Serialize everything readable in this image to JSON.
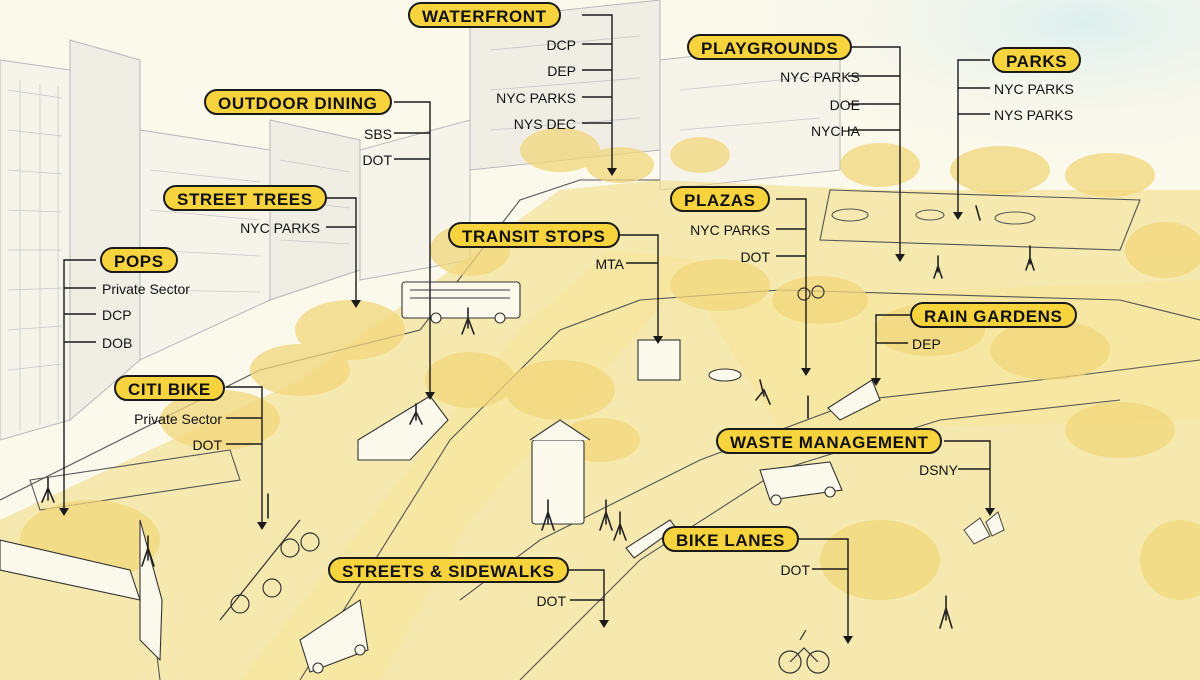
{
  "colors": {
    "accent": "#f7d43e",
    "wash": "#f3dd7e",
    "ink": "#1a1a1a",
    "sky": "#e6f2f1"
  },
  "labels": {
    "waterfront": {
      "title": "WATERFRONT",
      "agencies": [
        "DCP",
        "DEP",
        "NYC PARKS",
        "NYS DEC"
      ]
    },
    "playgrounds": {
      "title": "PLAYGROUNDS",
      "agencies": [
        "NYC PARKS",
        "DOE",
        "NYCHA"
      ]
    },
    "parks": {
      "title": "PARKS",
      "agencies": [
        "NYC PARKS",
        "NYS PARKS"
      ]
    },
    "outdoor_dining": {
      "title": "OUTDOOR DINING",
      "agencies": [
        "SBS",
        "DOT"
      ]
    },
    "street_trees": {
      "title": "STREET TREES",
      "agencies": [
        "NYC PARKS"
      ]
    },
    "transit_stops": {
      "title": "TRANSIT STOPS",
      "agencies": [
        "MTA"
      ]
    },
    "plazas": {
      "title": "PLAZAS",
      "agencies": [
        "NYC PARKS",
        "DOT"
      ]
    },
    "pops": {
      "title": "POPS",
      "agencies": [
        "Private Sector",
        "DCP",
        "DOB"
      ]
    },
    "rain_gardens": {
      "title": "RAIN GARDENS",
      "agencies": [
        "DEP"
      ]
    },
    "citi_bike": {
      "title": "CITI BIKE",
      "agencies": [
        "Private Sector",
        "DOT"
      ]
    },
    "waste_management": {
      "title": "WASTE MANAGEMENT",
      "agencies": [
        "DSNY"
      ]
    },
    "bike_lanes": {
      "title": "BIKE LANES",
      "agencies": [
        "DOT"
      ]
    },
    "streets_sidewalks": {
      "title": "STREETS & SIDEWALKS",
      "agencies": [
        "DOT"
      ]
    }
  }
}
